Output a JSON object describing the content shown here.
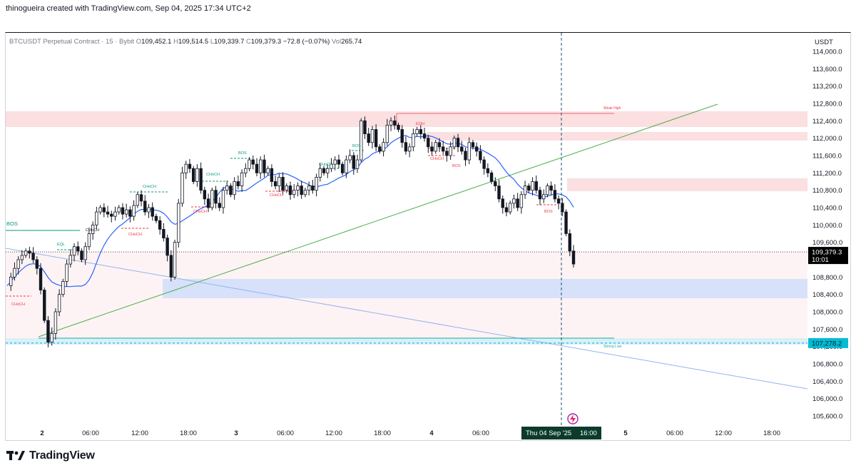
{
  "header": {
    "text": "thinogueira created with TradingView.com, Sep 04, 2025 17:34 UTC+2"
  },
  "legend": {
    "symbol": "BTCUSDT Perpetual Contract · 15 · Bybit",
    "open_label": "O",
    "open": "109,452.1",
    "high_label": "H",
    "high": "109,514.5",
    "low_label": "L",
    "low": "109,339.7",
    "close_label": "C",
    "close": "109,379.3",
    "change": "−72.8 (−0.07%)",
    "vol_label": "Vol",
    "vol": "265.74"
  },
  "footer": {
    "brand": "TradingView"
  },
  "colors": {
    "up_candle": "#ffffff",
    "candle_outline": "#131722",
    "down_candle": "#131722",
    "ma_line": "#2962ff",
    "trend_line_green": "#4caf50",
    "trend_line_blue": "#90b4f0",
    "supply_zone": "#fbdfe1",
    "demand_zone": "#d7e1fa",
    "bos_green": "#089981",
    "bos_red": "#f23645",
    "cyan_level": "#00bcd4"
  },
  "chart_data": {
    "type": "candlestick",
    "title": "BTCUSDT Perpetual Contract · 15 · Bybit",
    "currency_label": "USDT",
    "ylim": [
      105400,
      114400
    ],
    "y_ticks": [
      "114,000.0",
      "113,600.0",
      "113,200.0",
      "112,800.0",
      "112,400.0",
      "112,000.0",
      "111,600.0",
      "111,200.0",
      "110,800.0",
      "110,400.0",
      "110,000.0",
      "109,600.0",
      "109,200.0",
      "108,800.0",
      "108,400.0",
      "108,000.0",
      "107,600.0",
      "107,200.0",
      "106,800.0",
      "106,400.0",
      "106,000.0",
      "105,600.0"
    ],
    "x_ticks": [
      "2",
      "06:00",
      "12:00",
      "18:00",
      "3",
      "06:00",
      "12:00",
      "18:00",
      "4",
      "06:00",
      "5",
      "06:00",
      "12:00",
      "18:00"
    ],
    "last_price_label": "109,379.3",
    "last_price_countdown": "10:01",
    "last_price": 109379.3,
    "level_label": "107,278.2",
    "level_price": 107278.2,
    "crosshair_time_label": "Thu 04 Sep '25",
    "crosshair_time_value": "16:00",
    "annotations": [
      "BOS",
      "CHoCH",
      "EQL",
      "CHoCH",
      "CHoCH",
      "CHoCH",
      "CHoCH",
      "CHoCH",
      "BOS",
      "CHoCH",
      "CHoCH",
      "BOS",
      "EQH",
      "CHoCH",
      "BOS",
      "BOS",
      "Weak High",
      "Strong Low"
    ],
    "series": [
      {
        "name": "BTCUSDT",
        "values": [
          108600,
          108800,
          109000,
          109200,
          109300,
          109400,
          109350,
          109200,
          109000,
          108500,
          107800,
          107300,
          107500,
          108000,
          108400,
          108700,
          109100,
          109300,
          109500,
          109400,
          109200,
          109500,
          109800,
          110000,
          110300,
          110400,
          110300,
          110250,
          110200,
          110300,
          110400,
          110250,
          110350,
          110200,
          110450,
          110700,
          110550,
          110300,
          110400,
          110200,
          110100,
          109900,
          109700,
          109300,
          108800,
          109600,
          110500,
          111200,
          111400,
          111300,
          111000,
          111300,
          110800,
          110600,
          110400,
          110800,
          110500,
          110400,
          110800,
          110900,
          110700,
          111000,
          110900,
          111200,
          111300,
          111500,
          111400,
          111200,
          111500,
          111200,
          111300,
          111000,
          110900,
          111100,
          110800,
          110900,
          110700,
          110800,
          110900,
          110700,
          110800,
          110900,
          110800,
          111100,
          111300,
          111200,
          111300,
          111400,
          111500,
          111400,
          111200,
          111500,
          111600,
          111300,
          111500,
          112400,
          112100,
          111900,
          112200,
          111800,
          111700,
          111900,
          112300,
          112400,
          112300,
          112200,
          111900,
          111700,
          111800,
          112100,
          112200,
          112100,
          112000,
          111800,
          111700,
          111900,
          111800,
          111700,
          111600,
          111800,
          112000,
          111800,
          111700,
          111500,
          111900,
          111800,
          111700,
          111500,
          111300,
          111200,
          111000,
          110900,
          110600,
          110400,
          110300,
          110500,
          110600,
          110400,
          110700,
          110900,
          110800,
          111000,
          110800,
          110600,
          110700,
          110900,
          110800,
          110600,
          110500,
          110300,
          109800,
          109400,
          109100
        ]
      }
    ]
  }
}
